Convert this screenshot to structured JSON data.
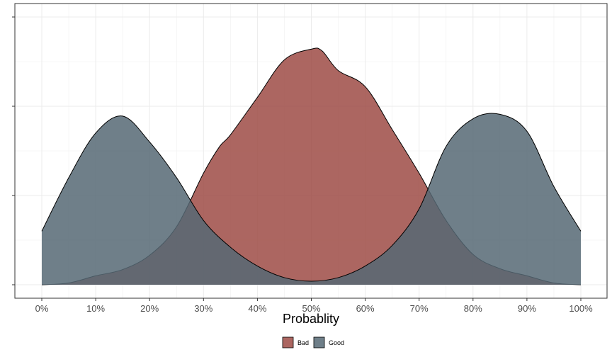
{
  "chart_data": {
    "type": "area",
    "subtype": "density",
    "title": "",
    "xlabel": "Probablity",
    "ylabel": "",
    "xlim": [
      0,
      1
    ],
    "ylim": [
      0,
      2.63
    ],
    "x_ticks": [
      0,
      0.1,
      0.2,
      0.3,
      0.4,
      0.5,
      0.6,
      0.7,
      0.8,
      0.9,
      1.0
    ],
    "x_tick_labels": [
      "0%",
      "10%",
      "20%",
      "30%",
      "40%",
      "50%",
      "60%",
      "70%",
      "80%",
      "90%",
      "100%"
    ],
    "y_ticks": [
      0,
      1,
      2,
      3
    ],
    "grid": true,
    "legend": {
      "position": "bottom",
      "entries": [
        "Bad",
        "Good"
      ]
    },
    "series": [
      {
        "name": "Bad",
        "color": "#9E4B45",
        "x": [
          0,
          0.05,
          0.1,
          0.15,
          0.2,
          0.25,
          0.3,
          0.33,
          0.35,
          0.4,
          0.45,
          0.5,
          0.52,
          0.55,
          0.6,
          0.65,
          0.7,
          0.75,
          0.8,
          0.85,
          0.9,
          0.95,
          1.0
        ],
        "y": [
          0.0,
          0.02,
          0.1,
          0.17,
          0.33,
          0.65,
          1.25,
          1.55,
          1.68,
          2.1,
          2.52,
          2.64,
          2.62,
          2.4,
          2.22,
          1.74,
          1.25,
          0.72,
          0.34,
          0.18,
          0.1,
          0.02,
          0.0
        ]
      },
      {
        "name": "Good",
        "color": "#566874",
        "x": [
          0,
          0.05,
          0.1,
          0.15,
          0.2,
          0.25,
          0.3,
          0.35,
          0.4,
          0.45,
          0.5,
          0.55,
          0.6,
          0.65,
          0.7,
          0.75,
          0.8,
          0.85,
          0.9,
          0.95,
          1.0
        ],
        "y": [
          0.6,
          1.2,
          1.7,
          1.89,
          1.6,
          1.2,
          0.72,
          0.42,
          0.21,
          0.08,
          0.04,
          0.08,
          0.21,
          0.44,
          0.85,
          1.55,
          1.86,
          1.91,
          1.72,
          1.1,
          0.6
        ]
      }
    ]
  }
}
